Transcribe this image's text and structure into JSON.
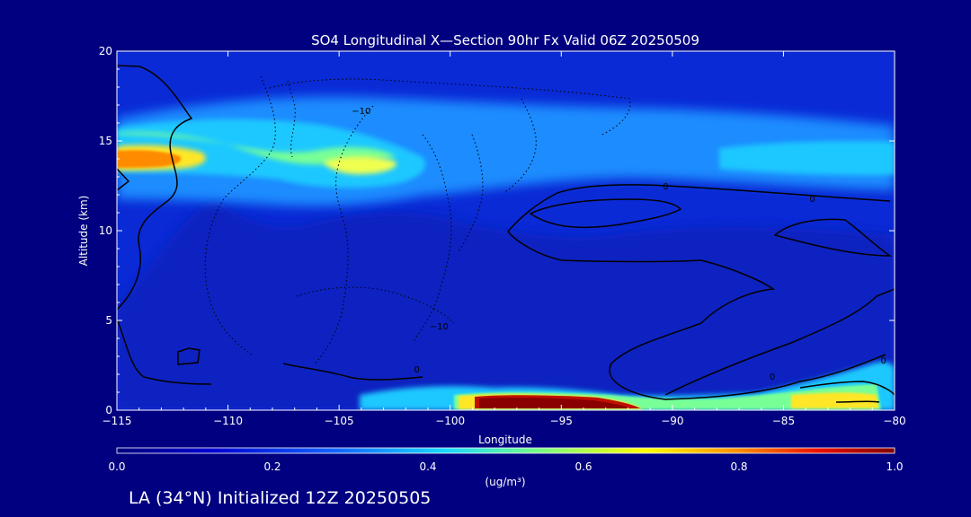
{
  "chart_data": {
    "type": "heatmap",
    "title": "SO4 Longitudinal X—Section 90hr  Fx Valid 06Z 20250509",
    "xlabel": "Longitude",
    "ylabel": "Altitude (km)",
    "xlim": [
      -115,
      -80
    ],
    "ylim": [
      0,
      20
    ],
    "x_ticks": [
      -115,
      -110,
      -105,
      -100,
      -95,
      -90,
      -85,
      -80
    ],
    "x_tick_labels": [
      "−115",
      "−110",
      "−105",
      "−100",
      "−95",
      "−90",
      "−85",
      "−80"
    ],
    "y_ticks": [
      0,
      5,
      10,
      15,
      20
    ],
    "y_tick_labels": [
      "0",
      "5",
      "10",
      "15",
      "20"
    ],
    "colorbar": {
      "min": 0.0,
      "max": 1.0,
      "ticks": [
        0.0,
        0.2,
        0.4,
        0.6,
        0.8,
        1.0
      ],
      "tick_labels": [
        "0.0",
        "0.2",
        "0.4",
        "0.6",
        "0.8",
        "1.0"
      ],
      "units_label": "(ug/m³)"
    },
    "colors": {
      "background": "#000080",
      "plot_fill": "#0a2ad6",
      "contour": "#000000"
    },
    "concentration_regions": [
      {
        "lon_range": [
          -115,
          -80
        ],
        "alt_range": [
          12.0,
          17.0
        ],
        "value": 0.4
      },
      {
        "lon_range": [
          -115,
          -112
        ],
        "alt_range": [
          13.5,
          14.5
        ],
        "value": 0.65
      },
      {
        "lon_range": [
          -112,
          -102
        ],
        "alt_range": [
          12.5,
          16.0
        ],
        "value": 0.45
      },
      {
        "lon_range": [
          -98.5,
          -92
        ],
        "alt_range": [
          0.0,
          0.6
        ],
        "value": 1.0
      },
      {
        "lon_range": [
          -86,
          -81
        ],
        "alt_range": [
          0.0,
          1.2
        ],
        "value": 0.7
      }
    ],
    "contour_labels": [
      {
        "text": "−10",
        "lon": -104,
        "alt": 16.7
      },
      {
        "text": "−10",
        "lon": -100.5,
        "alt": 4.7
      },
      {
        "text": "0",
        "lon": -101.5,
        "alt": 2.3
      },
      {
        "text": "0",
        "lon": -90.3,
        "alt": 12.5
      },
      {
        "text": "0",
        "lon": -83.7,
        "alt": 11.8
      },
      {
        "text": "0",
        "lon": -85.5,
        "alt": 1.9
      },
      {
        "text": "0",
        "lon": -80.5,
        "alt": 2.8
      }
    ]
  },
  "footer": {
    "init_text": "LA (34°N) Initialized 12Z 20250505"
  }
}
